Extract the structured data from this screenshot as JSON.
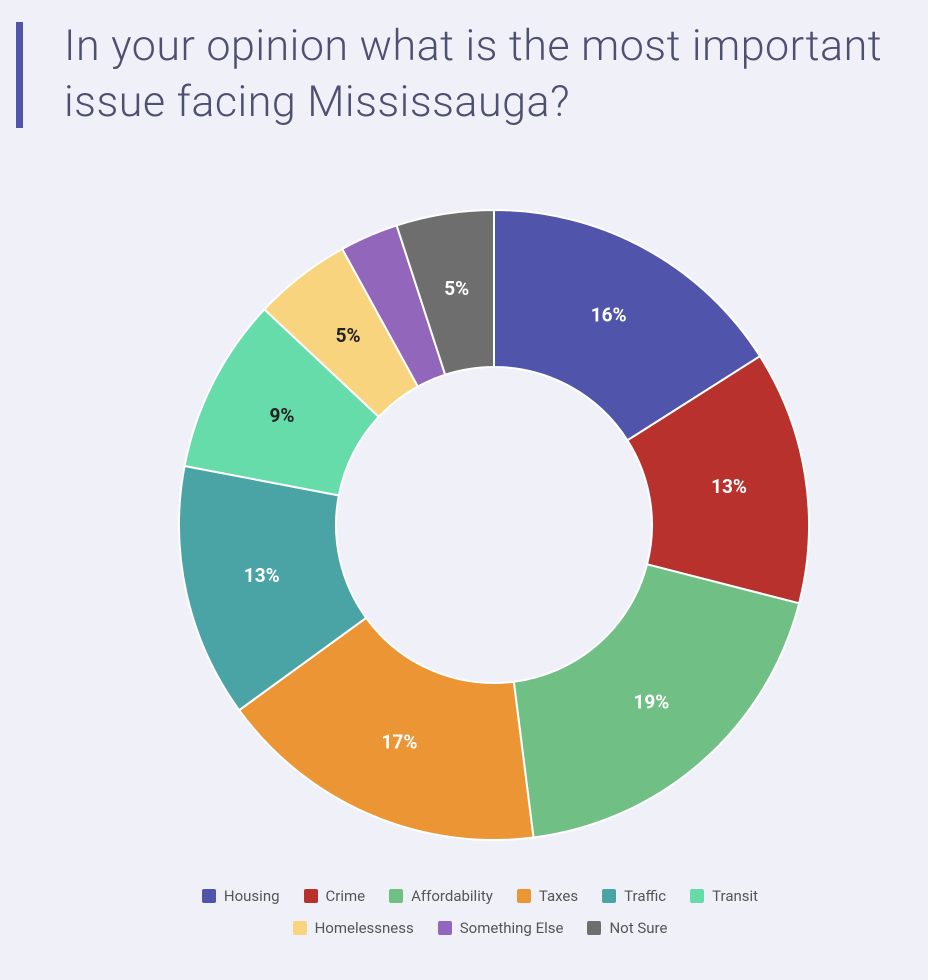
{
  "chart_data": {
    "type": "donut",
    "title": "In your opinion what is the most important issue facing Mississauga?",
    "categories": [
      "Housing",
      "Crime",
      "Affordability",
      "Taxes",
      "Traffic",
      "Transit",
      "Homelessness",
      "Something Else",
      "Not Sure"
    ],
    "values": [
      16,
      13,
      19,
      17,
      13,
      9,
      5,
      3,
      5
    ],
    "value_labels": [
      "16%",
      "13%",
      "19%",
      "17%",
      "13%",
      "9%",
      "5%",
      null,
      "5%"
    ],
    "colors": [
      "#5054aa",
      "#b8312c",
      "#70bf84",
      "#ec9535",
      "#4aa4a5",
      "#66dcaa",
      "#f8d47e",
      "#9166bb",
      "#6e6e6e"
    ]
  }
}
